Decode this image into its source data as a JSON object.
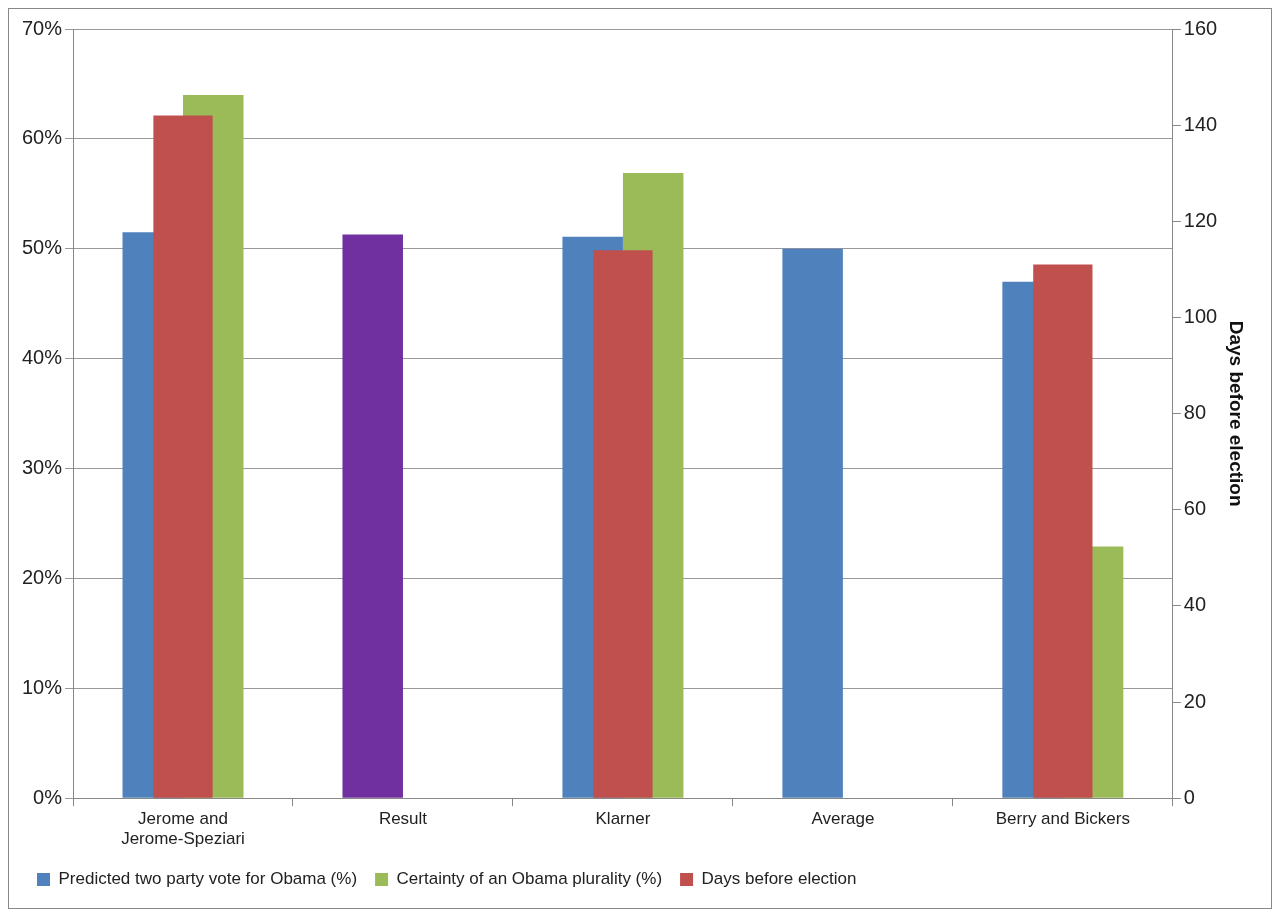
{
  "chart_data": {
    "type": "bar",
    "categories": [
      "Jerome and Jerome-Speziari",
      "Result",
      "Klarner",
      "Average",
      "Berry and Bickers"
    ],
    "series": [
      {
        "name": "Predicted two party vote for Obama (%)",
        "color": "#4f81bd",
        "colors": [
          "#4f81bd",
          "#7030a0",
          "#4f81bd",
          "#4f81bd",
          "#4f81bd"
        ],
        "values": [
          51.5,
          51.3,
          51.1,
          50.0,
          47.0
        ]
      },
      {
        "name": "Certainty of an Obama plurality (%)",
        "color": "#9bbb59",
        "values": [
          64.0,
          null,
          56.9,
          null,
          22.9
        ]
      },
      {
        "name": "Days before election",
        "color": "#c0504d",
        "axis": "y2",
        "values": [
          142,
          null,
          114,
          null,
          111
        ]
      }
    ],
    "ylim": [
      0,
      70
    ],
    "yticks": [
      {
        "value": 0,
        "label": "0%"
      },
      {
        "value": 10,
        "label": "10%"
      },
      {
        "value": 20,
        "label": "20%"
      },
      {
        "value": 30,
        "label": "30%"
      },
      {
        "value": 40,
        "label": "40%"
      },
      {
        "value": 50,
        "label": "50%"
      },
      {
        "value": 60,
        "label": "60%"
      },
      {
        "value": 70,
        "label": "70%"
      }
    ],
    "y2lim": [
      0,
      160
    ],
    "y2ticks": [
      0,
      20,
      40,
      60,
      80,
      100,
      120,
      140,
      160
    ],
    "y2label": "Days before election",
    "grid": "y",
    "legend": "bottom"
  }
}
